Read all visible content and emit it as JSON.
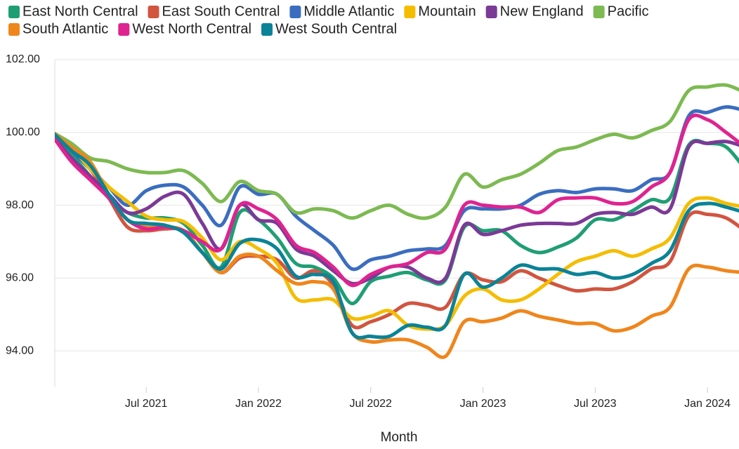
{
  "chart_data": {
    "type": "line",
    "x_label": "Month",
    "x": [
      "Feb 2021",
      "Mar 2021",
      "Apr 2021",
      "May 2021",
      "Jun 2021",
      "Jul 2021",
      "Aug 2021",
      "Sep 2021",
      "Oct 2021",
      "Nov 2021",
      "Dec 2021",
      "Jan 2022",
      "Feb 2022",
      "Mar 2022",
      "Apr 2022",
      "May 2022",
      "Jun 2022",
      "Jul 2022",
      "Aug 2022",
      "Sep 2022",
      "Oct 2022",
      "Nov 2022",
      "Dec 2022",
      "Jan 2023",
      "Feb 2023",
      "Mar 2023",
      "Apr 2023",
      "May 2023",
      "Jun 2023",
      "Jul 2023",
      "Aug 2023",
      "Sep 2023",
      "Oct 2023",
      "Nov 2023",
      "Dec 2023",
      "Jan 2024",
      "Feb 2024",
      "Mar 2024"
    ],
    "xticks": [
      "Jul 2021",
      "Jan 2022",
      "Jul 2022",
      "Jan 2023",
      "Jul 2023",
      "Jan 2024"
    ],
    "ylim": [
      93,
      102
    ],
    "yticks": [
      {
        "value": 94,
        "label": "94.00"
      },
      {
        "value": 96,
        "label": "96.00"
      },
      {
        "value": 98,
        "label": "98.00"
      },
      {
        "value": 100,
        "label": "100.00"
      },
      {
        "value": 102,
        "label": "102.00"
      }
    ],
    "grid": true,
    "series": [
      {
        "name": "East North Central",
        "color": "#1f9e74",
        "values": [
          100,
          99.4,
          98.8,
          98.2,
          97.8,
          97.65,
          97.65,
          97.5,
          96.9,
          96.3,
          97.8,
          97.6,
          97.1,
          96.4,
          96.3,
          96.0,
          95.3,
          95.9,
          96.05,
          96.15,
          95.95,
          95.95,
          97.4,
          97.3,
          97.3,
          96.9,
          96.7,
          96.85,
          97.1,
          97.6,
          97.6,
          97.85,
          98.15,
          98.2,
          99.65,
          99.7,
          99.6,
          99.0
        ]
      },
      {
        "name": "East South Central",
        "color": "#d1553f",
        "values": [
          100,
          99.5,
          99.0,
          98.2,
          97.4,
          97.3,
          97.35,
          97.3,
          96.7,
          96.15,
          96.55,
          96.6,
          96.5,
          96.0,
          96.2,
          95.8,
          94.7,
          94.8,
          95.0,
          95.3,
          95.25,
          95.2,
          96.1,
          95.95,
          95.9,
          96.2,
          96.0,
          95.8,
          95.65,
          95.7,
          95.7,
          95.9,
          96.25,
          96.45,
          97.7,
          97.75,
          97.65,
          97.3
        ]
      },
      {
        "name": "Middle Atlantic",
        "color": "#3b6dbf",
        "values": [
          100,
          99.5,
          99.0,
          98.5,
          98.0,
          98.4,
          98.55,
          98.5,
          98.0,
          97.45,
          98.5,
          98.3,
          98.3,
          97.7,
          97.3,
          96.9,
          96.25,
          96.5,
          96.6,
          96.75,
          96.8,
          96.9,
          97.85,
          97.9,
          97.9,
          98.0,
          98.3,
          98.4,
          98.35,
          98.45,
          98.45,
          98.4,
          98.7,
          98.9,
          100.45,
          100.55,
          100.7,
          100.6
        ]
      },
      {
        "name": "Mountain",
        "color": "#f4bd00",
        "values": [
          100,
          99.6,
          99.0,
          98.5,
          98.1,
          97.7,
          97.6,
          97.55,
          97.1,
          96.5,
          97.0,
          96.8,
          96.4,
          95.45,
          95.4,
          95.4,
          94.9,
          94.95,
          95.1,
          94.7,
          94.6,
          94.7,
          95.5,
          95.7,
          95.4,
          95.4,
          95.7,
          96.1,
          96.45,
          96.6,
          96.75,
          96.6,
          96.8,
          97.1,
          98.05,
          98.2,
          98.05,
          97.95
        ]
      },
      {
        "name": "New England",
        "color": "#7b3a96",
        "values": [
          99.9,
          99.3,
          98.8,
          98.3,
          97.8,
          97.9,
          98.25,
          98.3,
          97.5,
          96.8,
          98.0,
          97.6,
          97.5,
          96.8,
          96.6,
          96.2,
          95.85,
          96.0,
          96.3,
          96.3,
          96.0,
          96.0,
          97.45,
          97.2,
          97.3,
          97.45,
          97.5,
          97.5,
          97.5,
          97.75,
          97.8,
          97.75,
          97.95,
          97.9,
          99.6,
          99.7,
          99.75,
          99.6
        ]
      },
      {
        "name": "Pacific",
        "color": "#7dba52",
        "values": [
          100,
          99.7,
          99.3,
          99.2,
          99.0,
          98.9,
          98.9,
          98.95,
          98.6,
          98.1,
          98.65,
          98.4,
          98.3,
          97.8,
          97.9,
          97.85,
          97.65,
          97.85,
          98.0,
          97.75,
          97.65,
          97.95,
          98.85,
          98.5,
          98.7,
          98.85,
          99.15,
          99.5,
          99.6,
          99.8,
          99.95,
          99.85,
          100.05,
          100.3,
          101.15,
          101.25,
          101.3,
          101.1
        ]
      },
      {
        "name": "South Atlantic",
        "color": "#ef861c",
        "values": [
          100,
          99.6,
          99.2,
          98.3,
          97.6,
          97.4,
          97.4,
          97.3,
          96.7,
          96.15,
          96.6,
          96.6,
          96.2,
          95.85,
          95.9,
          95.7,
          94.5,
          94.25,
          94.3,
          94.3,
          94.1,
          93.85,
          94.8,
          94.8,
          94.9,
          95.1,
          94.95,
          94.85,
          94.75,
          94.75,
          94.55,
          94.65,
          94.95,
          95.2,
          96.25,
          96.3,
          96.2,
          96.15
        ]
      },
      {
        "name": "West North Central",
        "color": "#df2390",
        "values": [
          99.9,
          99.2,
          98.7,
          98.2,
          97.6,
          97.35,
          97.4,
          97.3,
          97.0,
          96.8,
          98.0,
          97.9,
          97.6,
          96.9,
          96.7,
          96.3,
          95.8,
          96.1,
          96.3,
          96.4,
          96.7,
          96.8,
          98.0,
          98.0,
          97.95,
          97.95,
          97.8,
          98.15,
          98.2,
          98.2,
          98.05,
          98.1,
          98.5,
          98.9,
          100.35,
          100.35,
          100.0,
          99.6
        ]
      },
      {
        "name": "West South Central",
        "color": "#0b8396",
        "values": [
          100,
          99.5,
          99.1,
          98.3,
          97.6,
          97.5,
          97.45,
          97.25,
          96.7,
          96.25,
          96.95,
          97.05,
          96.8,
          96.05,
          96.1,
          95.9,
          94.5,
          94.4,
          94.4,
          94.7,
          94.65,
          94.7,
          96.1,
          95.75,
          96.0,
          96.35,
          96.25,
          96.25,
          96.1,
          96.15,
          96.0,
          96.1,
          96.4,
          96.75,
          97.85,
          98.05,
          97.95,
          97.8
        ]
      }
    ]
  }
}
